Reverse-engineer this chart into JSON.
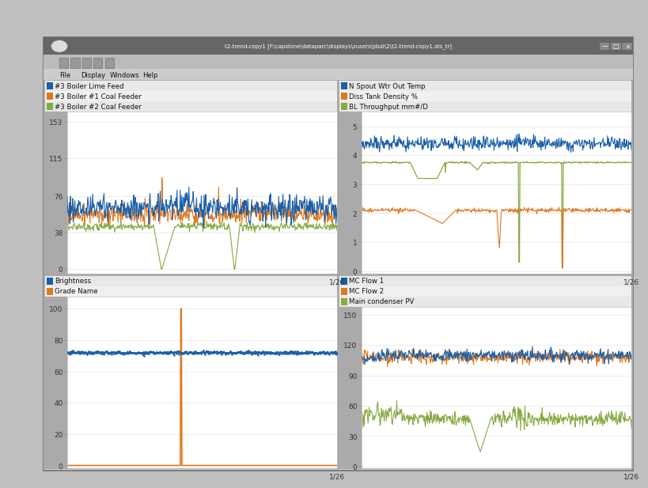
{
  "title": "t2-trend-copy1 [f:\\capstone\\dataparc\\displays\\zusers\\jdull\\2\\t2-trend-copy1.dis_tr]",
  "bg_outer": "#c8c8c8",
  "bg_titlebar": "#666666",
  "bg_menubar": "#aaaaaa",
  "bg_plot": "#ffffff",
  "bg_content": "#aaaaaa",
  "menu_items": [
    "File",
    "Display",
    "Windows",
    "Help"
  ],
  "panel_tl": {
    "legends": [
      {
        "label": "#3 Boiler Lime Feed",
        "color": "#1a5fa8"
      },
      {
        "label": "#3 Boiler #1 Coal Feeder",
        "color": "#e07820"
      },
      {
        "label": "#3 Boiler #2 Coal Feeder",
        "color": "#88aa44"
      }
    ],
    "yticks": [
      0,
      38,
      76,
      115,
      153
    ],
    "xtick_label": "1/26",
    "ymin": -5,
    "ymax": 163
  },
  "panel_tr": {
    "legends": [
      {
        "label": "N Spout Wtr Out Temp",
        "color": "#1a5fa8"
      },
      {
        "label": "Diss Tank Density %",
        "color": "#e07820"
      },
      {
        "label": "BL Throughput mm#/D",
        "color": "#88aa44"
      }
    ],
    "yticks": [
      0,
      1,
      2,
      3,
      4,
      5
    ],
    "xtick_label": "1/26",
    "ymin": -0.1,
    "ymax": 5.5
  },
  "panel_bl": {
    "legends": [
      {
        "label": "Brightness",
        "color": "#1a5fa8"
      },
      {
        "label": "Grade Name",
        "color": "#e07820"
      }
    ],
    "yticks": [
      0,
      20,
      40,
      60,
      80,
      100
    ],
    "xtick_label": "1/26",
    "ymin": -2,
    "ymax": 108
  },
  "panel_br": {
    "legends": [
      {
        "label": "MC Flow 1",
        "color": "#1a5fa8"
      },
      {
        "label": "MC Flow 2",
        "color": "#e07820"
      },
      {
        "label": "Main condenser PV",
        "color": "#88aa44"
      }
    ],
    "yticks": [
      0,
      30,
      60,
      90,
      120,
      150
    ],
    "xtick_label": "1/26",
    "ymin": -2,
    "ymax": 158
  }
}
